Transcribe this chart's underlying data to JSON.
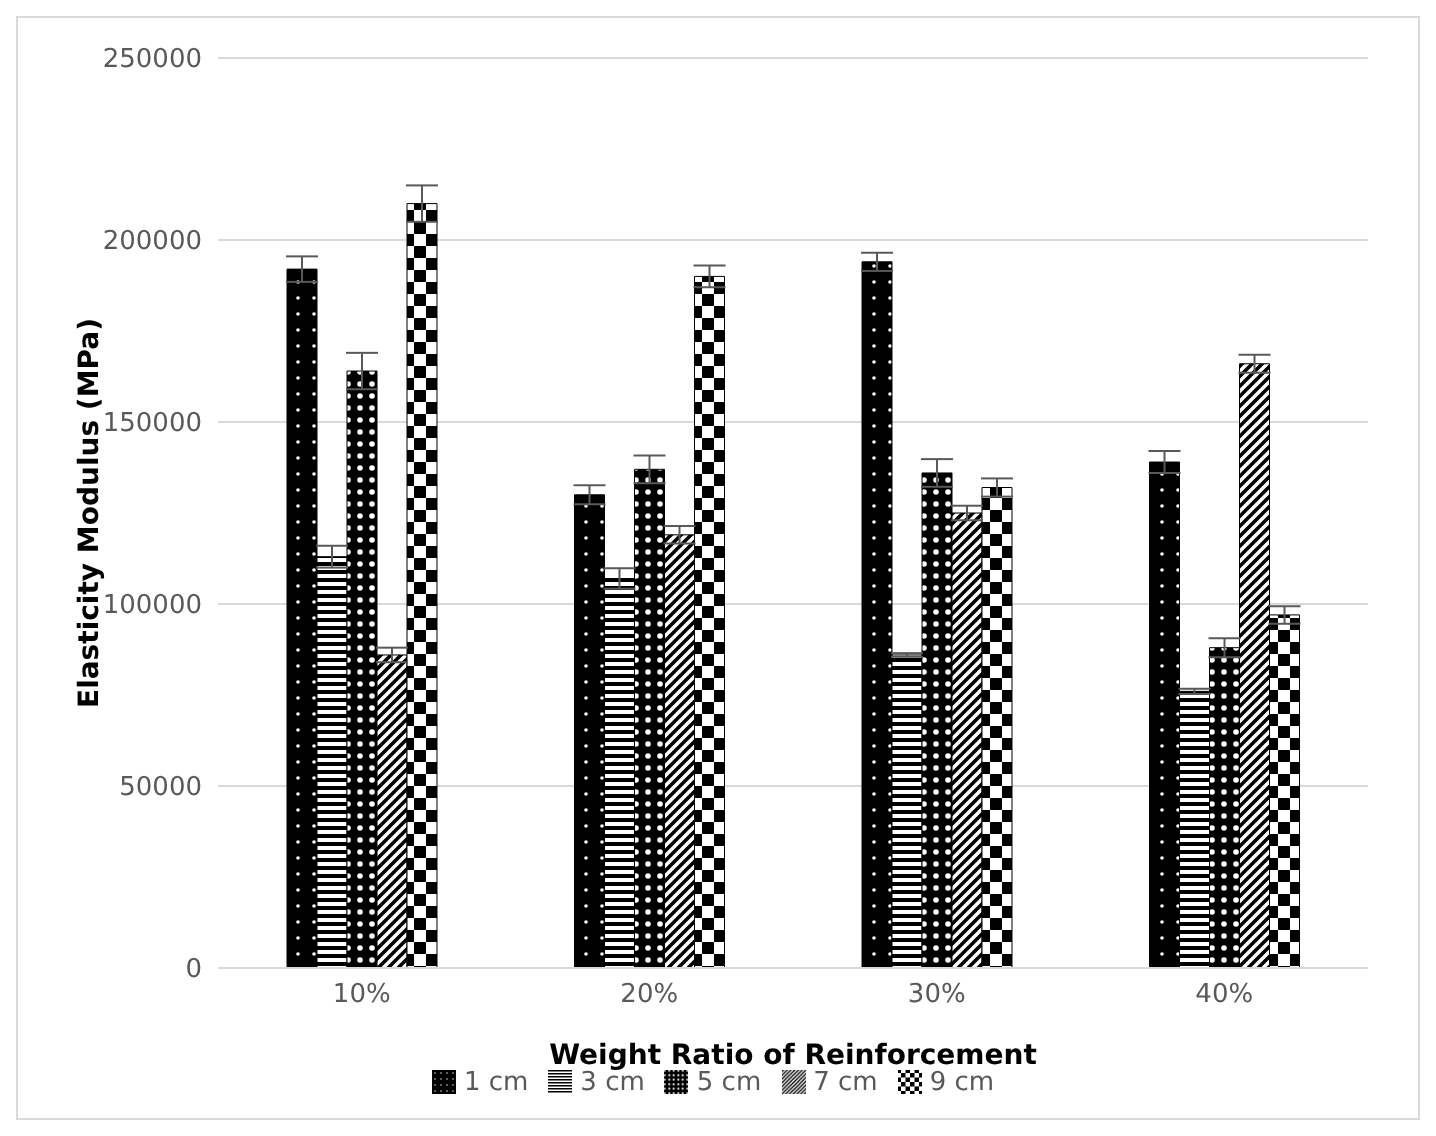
{
  "chart_data": {
    "type": "bar",
    "xlabel": "Weight Ratio of Reinforcement",
    "ylabel": "Elasticity Modulus (MPa)",
    "categories": [
      "10%",
      "20%",
      "30%",
      "40%"
    ],
    "series": [
      {
        "name": "1 cm",
        "color": "#000000",
        "values": [
          192000,
          130000,
          194000,
          139000
        ],
        "errors": [
          3500,
          2600,
          2500,
          3000
        ]
      },
      {
        "name": "3 cm",
        "color": "#000000",
        "values": [
          113000,
          107000,
          86000,
          76000
        ],
        "errors": [
          3000,
          2800,
          500,
          700
        ]
      },
      {
        "name": "5 cm",
        "color": "#000000",
        "values": [
          164000,
          137000,
          136000,
          88000
        ],
        "errors": [
          5000,
          3800,
          3800,
          2600
        ]
      },
      {
        "name": "7 cm",
        "color": "#000000",
        "values": [
          86000,
          119000,
          125000,
          166000
        ],
        "errors": [
          2000,
          2400,
          2000,
          2500
        ]
      },
      {
        "name": "9 cm",
        "color": "#000000",
        "values": [
          210000,
          190000,
          132000,
          97000
        ],
        "errors": [
          5000,
          3000,
          2500,
          2400
        ]
      }
    ],
    "ylim": [
      0,
      250000
    ],
    "yticks": [
      0,
      50000,
      100000,
      150000,
      200000,
      250000
    ],
    "grid": "y",
    "legend": "bottom"
  }
}
